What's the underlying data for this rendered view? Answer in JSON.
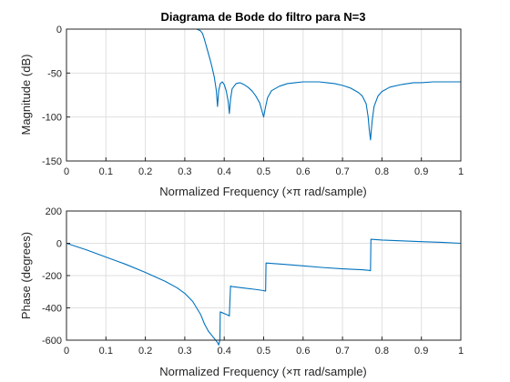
{
  "chart_data": [
    {
      "type": "line",
      "title": "Diagrama de Bode do filtro para N=3",
      "xlabel": "Normalized Frequency  (×π rad/sample)",
      "ylabel": "Magnitude (dB)",
      "xlim": [
        0,
        1
      ],
      "ylim": [
        -150,
        0
      ],
      "xticks": [
        "0",
        "0.1",
        "0.2",
        "0.3",
        "0.4",
        "0.5",
        "0.6",
        "0.7",
        "0.8",
        "0.9",
        "1"
      ],
      "yticks": [
        "0",
        "-50",
        "-100",
        "-150"
      ],
      "grid": true,
      "series": [
        {
          "color": "#0072BD",
          "x": [
            0,
            0.05,
            0.1,
            0.15,
            0.2,
            0.25,
            0.3,
            0.32,
            0.33,
            0.34,
            0.345,
            0.35,
            0.355,
            0.36,
            0.365,
            0.37,
            0.375,
            0.38,
            0.383,
            0.386,
            0.39,
            0.395,
            0.4,
            0.405,
            0.41,
            0.413,
            0.416,
            0.42,
            0.43,
            0.44,
            0.45,
            0.46,
            0.47,
            0.48,
            0.49,
            0.5,
            0.505,
            0.51,
            0.52,
            0.54,
            0.56,
            0.58,
            0.6,
            0.62,
            0.64,
            0.66,
            0.68,
            0.7,
            0.72,
            0.74,
            0.75,
            0.76,
            0.765,
            0.768,
            0.771,
            0.775,
            0.78,
            0.79,
            0.8,
            0.82,
            0.85,
            0.88,
            0.9,
            0.93,
            0.96,
            1.0
          ],
          "y": [
            0,
            0,
            0,
            0,
            0,
            0,
            0,
            0,
            0,
            -2,
            -5,
            -12,
            -20,
            -28,
            -36,
            -45,
            -55,
            -70,
            -88,
            -70,
            -62,
            -60,
            -63,
            -70,
            -82,
            -96,
            -80,
            -68,
            -62,
            -61,
            -63,
            -66,
            -70,
            -76,
            -84,
            -100,
            -88,
            -78,
            -70,
            -65,
            -62,
            -61,
            -60,
            -60,
            -60,
            -61,
            -62,
            -64,
            -67,
            -72,
            -76,
            -85,
            -100,
            -115,
            -126,
            -105,
            -88,
            -76,
            -71,
            -66,
            -63,
            -61,
            -61,
            -60,
            -60,
            -60
          ]
        }
      ]
    },
    {
      "type": "line",
      "xlabel": "Normalized Frequency  (×π rad/sample)",
      "ylabel": "Phase (degrees)",
      "xlim": [
        0,
        1
      ],
      "ylim": [
        -600,
        200
      ],
      "xticks": [
        "0",
        "0.1",
        "0.2",
        "0.3",
        "0.4",
        "0.5",
        "0.6",
        "0.7",
        "0.8",
        "0.9",
        "1"
      ],
      "yticks": [
        "200",
        "0",
        "-200",
        "-400",
        "-600"
      ],
      "grid": true,
      "series": [
        {
          "color": "#0072BD",
          "x": [
            0,
            0.05,
            0.1,
            0.15,
            0.2,
            0.25,
            0.28,
            0.3,
            0.32,
            0.34,
            0.35,
            0.36,
            0.37,
            0.375,
            0.38,
            0.383,
            0.386,
            0.389,
            0.39,
            0.395,
            0.4,
            0.405,
            0.41,
            0.413,
            0.416,
            0.42,
            0.45,
            0.48,
            0.5,
            0.505,
            0.506,
            0.55,
            0.6,
            0.65,
            0.7,
            0.75,
            0.768,
            0.771,
            0.772,
            0.8,
            0.85,
            0.9,
            0.95,
            1.0
          ],
          "y": [
            0,
            -40,
            -85,
            -130,
            -180,
            -235,
            -275,
            -310,
            -360,
            -440,
            -500,
            -545,
            -575,
            -590,
            -605,
            -615,
            -630,
            -600,
            -425,
            -430,
            -435,
            -440,
            -445,
            -450,
            -265,
            -268,
            -277,
            -286,
            -293,
            -296,
            -122,
            -130,
            -140,
            -150,
            -158,
            -164,
            -168,
            -170,
            25,
            20,
            15,
            10,
            6,
            0
          ]
        }
      ]
    }
  ]
}
